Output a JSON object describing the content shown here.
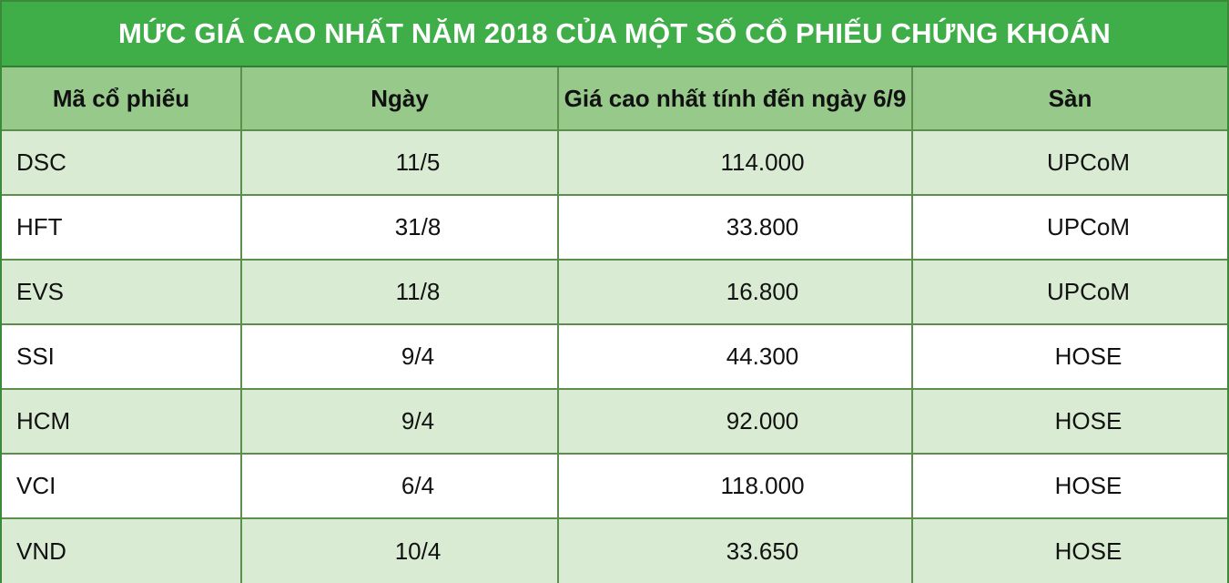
{
  "title": "MỨC GIÁ CAO NHẤT NĂM 2018 CỦA MỘT SỐ CỔ PHIẾU CHỨNG KHOÁN",
  "columns": [
    "Mã cổ phiếu",
    "Ngày",
    "Giá cao nhất tính đến ngày 6/9",
    "Sàn"
  ],
  "rows": [
    {
      "code": "DSC",
      "date": "11/5",
      "price": "114.000",
      "exchange": "UPCoM"
    },
    {
      "code": "HFT",
      "date": "31/8",
      "price": "33.800",
      "exchange": "UPCoM"
    },
    {
      "code": "EVS",
      "date": "11/8",
      "price": "16.800",
      "exchange": "UPCoM"
    },
    {
      "code": "SSI",
      "date": "9/4",
      "price": "44.300",
      "exchange": "HOSE"
    },
    {
      "code": "HCM",
      "date": "9/4",
      "price": "92.000",
      "exchange": "HOSE"
    },
    {
      "code": "VCI",
      "date": "6/4",
      "price": "118.000",
      "exchange": "HOSE"
    },
    {
      "code": "VND",
      "date": "10/4",
      "price": "33.650",
      "exchange": "HOSE"
    }
  ],
  "colors": {
    "title_bg": "#3fae49",
    "header_bg": "#96c98a",
    "row_alt_bg": "#d9ecd3",
    "row_plain_bg": "#ffffff",
    "grid_line": "#5c8f4e"
  }
}
